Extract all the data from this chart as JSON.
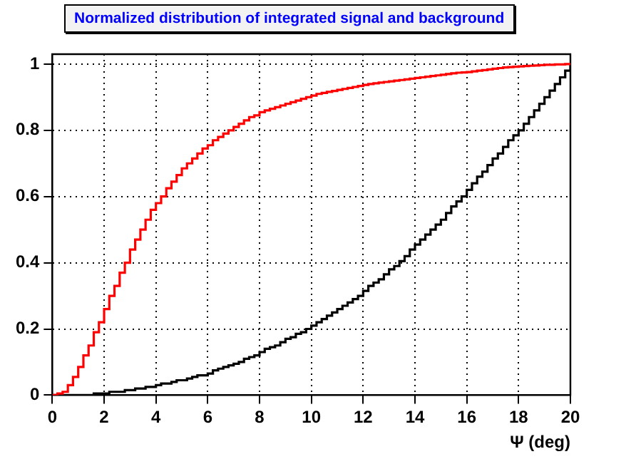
{
  "chart_data": {
    "type": "step",
    "title": "Normalized distribution of integrated signal and background",
    "xlabel": "Ψ (deg)",
    "x": [
      0,
      0.2,
      0.4,
      0.6,
      0.8,
      1,
      1.2,
      1.4,
      1.6,
      1.8,
      2,
      2.2,
      2.4,
      2.6,
      2.8,
      3,
      3.2,
      3.4,
      3.6,
      3.8,
      4,
      4.2,
      4.4,
      4.6,
      4.8,
      5,
      5.2,
      5.4,
      5.6,
      5.8,
      6,
      6.2,
      6.4,
      6.6,
      6.8,
      7,
      7.2,
      7.4,
      7.6,
      7.8,
      8,
      8.2,
      8.4,
      8.6,
      8.8,
      9,
      9.2,
      9.4,
      9.6,
      9.8,
      10,
      10.2,
      10.4,
      10.6,
      10.8,
      11,
      11.2,
      11.4,
      11.6,
      11.8,
      12,
      12.2,
      12.4,
      12.6,
      12.8,
      13,
      13.2,
      13.4,
      13.6,
      13.8,
      14,
      14.2,
      14.4,
      14.6,
      14.8,
      15,
      15.2,
      15.4,
      15.6,
      15.8,
      16,
      16.2,
      16.4,
      16.6,
      16.8,
      17,
      17.2,
      17.4,
      17.6,
      17.8,
      18,
      18.2,
      18.4,
      18.6,
      18.8,
      19,
      19.2,
      19.4,
      19.6,
      19.8,
      20
    ],
    "series": [
      {
        "color": "#ff0000",
        "values": [
          0,
          0.005,
          0.01,
          0.03,
          0.055,
          0.085,
          0.12,
          0.15,
          0.19,
          0.22,
          0.26,
          0.3,
          0.33,
          0.37,
          0.4,
          0.44,
          0.47,
          0.5,
          0.53,
          0.56,
          0.58,
          0.6,
          0.625,
          0.645,
          0.665,
          0.685,
          0.7,
          0.715,
          0.73,
          0.745,
          0.755,
          0.77,
          0.78,
          0.79,
          0.8,
          0.81,
          0.82,
          0.83,
          0.84,
          0.845,
          0.855,
          0.86,
          0.865,
          0.87,
          0.875,
          0.88,
          0.885,
          0.89,
          0.895,
          0.9,
          0.905,
          0.91,
          0.913,
          0.916,
          0.919,
          0.922,
          0.925,
          0.928,
          0.931,
          0.934,
          0.937,
          0.94,
          0.942,
          0.944,
          0.946,
          0.948,
          0.95,
          0.952,
          0.954,
          0.956,
          0.958,
          0.96,
          0.962,
          0.964,
          0.966,
          0.968,
          0.97,
          0.972,
          0.974,
          0.975,
          0.976,
          0.978,
          0.98,
          0.982,
          0.984,
          0.986,
          0.988,
          0.99,
          0.991,
          0.992,
          0.993,
          0.994,
          0.995,
          0.996,
          0.997,
          0.998,
          0.998,
          0.999,
          0.999,
          1,
          1
        ]
      },
      {
        "color": "#000000",
        "values": [
          0,
          0,
          0,
          0,
          0,
          0,
          0,
          0,
          0.005,
          0.005,
          0.005,
          0.01,
          0.01,
          0.01,
          0.015,
          0.015,
          0.02,
          0.02,
          0.025,
          0.025,
          0.03,
          0.035,
          0.035,
          0.04,
          0.045,
          0.045,
          0.05,
          0.055,
          0.06,
          0.06,
          0.065,
          0.075,
          0.08,
          0.085,
          0.09,
          0.095,
          0.1,
          0.11,
          0.115,
          0.12,
          0.13,
          0.14,
          0.145,
          0.15,
          0.16,
          0.17,
          0.175,
          0.185,
          0.19,
          0.2,
          0.21,
          0.22,
          0.23,
          0.24,
          0.25,
          0.26,
          0.27,
          0.28,
          0.29,
          0.3,
          0.315,
          0.33,
          0.34,
          0.35,
          0.365,
          0.38,
          0.39,
          0.405,
          0.42,
          0.44,
          0.455,
          0.47,
          0.485,
          0.5,
          0.515,
          0.53,
          0.55,
          0.57,
          0.585,
          0.6,
          0.62,
          0.64,
          0.66,
          0.675,
          0.695,
          0.715,
          0.73,
          0.75,
          0.77,
          0.785,
          0.8,
          0.82,
          0.84,
          0.86,
          0.88,
          0.9,
          0.92,
          0.94,
          0.96,
          0.98,
          1
        ]
      }
    ],
    "xlim": [
      0,
      20
    ],
    "xticks": [
      0,
      2,
      4,
      6,
      8,
      10,
      12,
      14,
      16,
      18,
      20
    ],
    "ylim": [
      0,
      1.03
    ],
    "yticks": [
      0,
      0.2,
      0.4,
      0.6,
      0.8,
      1
    ],
    "grid": true,
    "legend": false
  }
}
